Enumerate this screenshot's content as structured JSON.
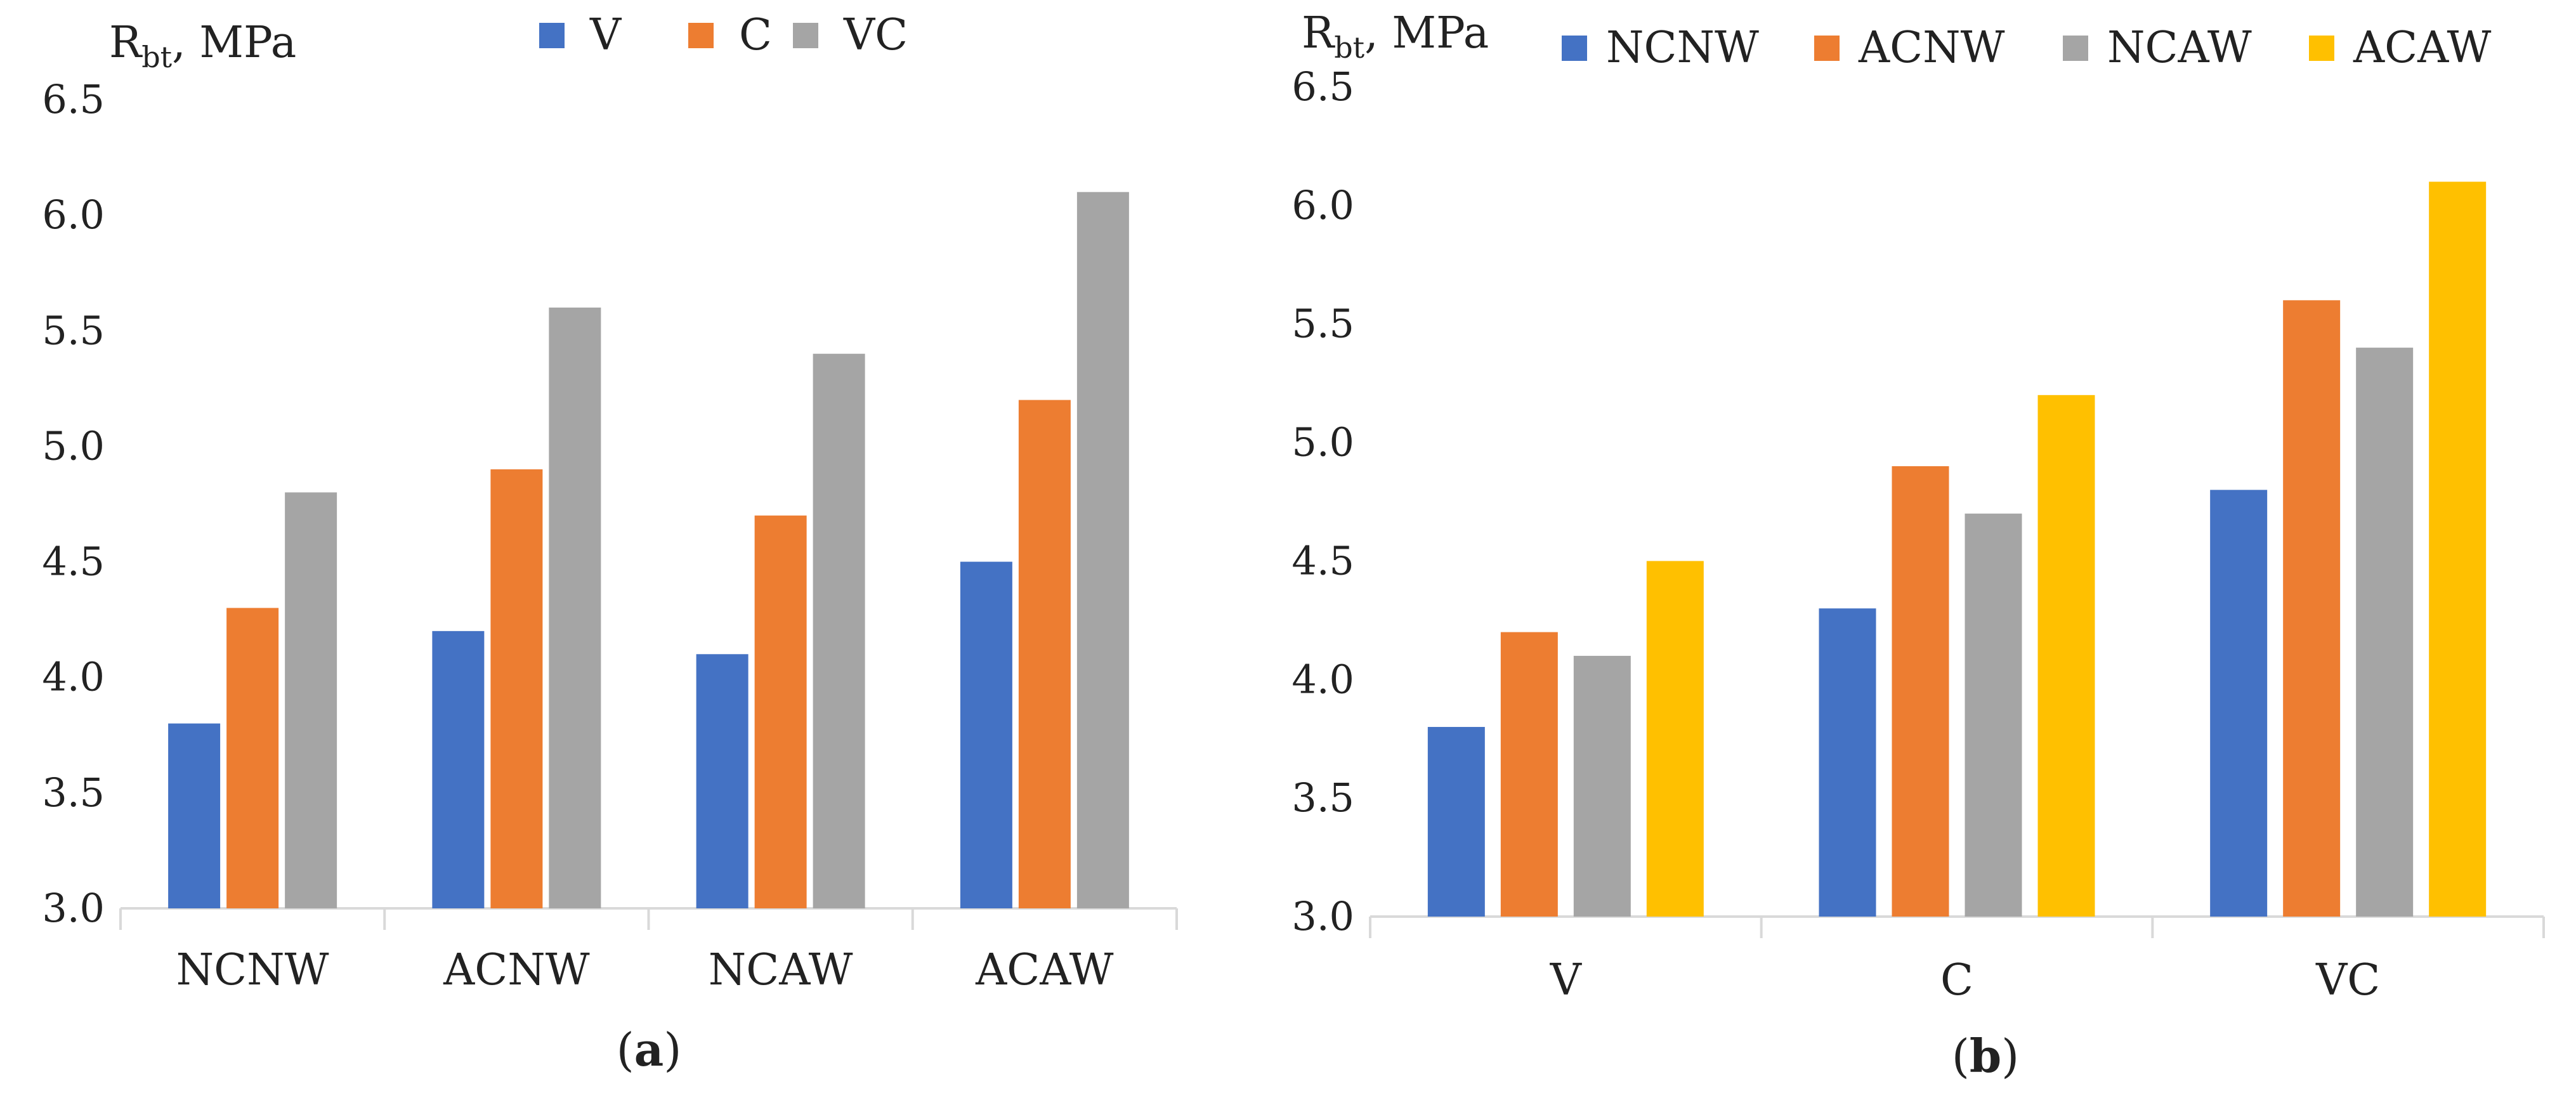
{
  "chart_data": [
    {
      "type": "bar",
      "panel_label": "a",
      "ylabel_main": "R",
      "ylabel_sub": "bt",
      "ylabel_tail": ", MPa",
      "categories": [
        "NCNW",
        "ACNW",
        "NCAW",
        "ACAW"
      ],
      "series": [
        {
          "name": "V",
          "values": [
            3.8,
            4.2,
            4.1,
            4.5
          ]
        },
        {
          "name": "C",
          "values": [
            4.3,
            4.9,
            4.7,
            5.2
          ]
        },
        {
          "name": "VC",
          "values": [
            4.8,
            5.6,
            5.4,
            6.1
          ]
        }
      ],
      "ylim": [
        3.0,
        6.5
      ],
      "yticks": [
        "3.0",
        "3.5",
        "4.0",
        "4.5",
        "5.0",
        "5.5",
        "6.0",
        "6.5"
      ],
      "grid": false,
      "legend_placement": "top"
    },
    {
      "type": "bar",
      "panel_label": "b",
      "ylabel_main": "R",
      "ylabel_sub": "bt",
      "ylabel_tail": ", MPa",
      "categories": [
        "V",
        "C",
        "VC"
      ],
      "series": [
        {
          "name": "NCNW",
          "values": [
            3.8,
            4.3,
            4.8
          ]
        },
        {
          "name": "ACNW",
          "values": [
            4.2,
            4.9,
            5.6
          ]
        },
        {
          "name": "NCAW",
          "values": [
            4.1,
            4.7,
            5.4
          ]
        },
        {
          "name": "ACAW",
          "values": [
            4.5,
            5.2,
            6.1
          ]
        }
      ],
      "ylim": [
        3.0,
        6.5
      ],
      "yticks": [
        "3.0",
        "3.5",
        "4.0",
        "4.5",
        "5.0",
        "5.5",
        "6.0",
        "6.5"
      ],
      "grid": false,
      "legend_placement": "top"
    }
  ],
  "colors": {
    "blue": "#4472C4",
    "orange": "#ED7D31",
    "gray": "#A5A5A5",
    "yellow": "#FFC000",
    "axis": "#D9D9D9",
    "text": "#222222"
  }
}
